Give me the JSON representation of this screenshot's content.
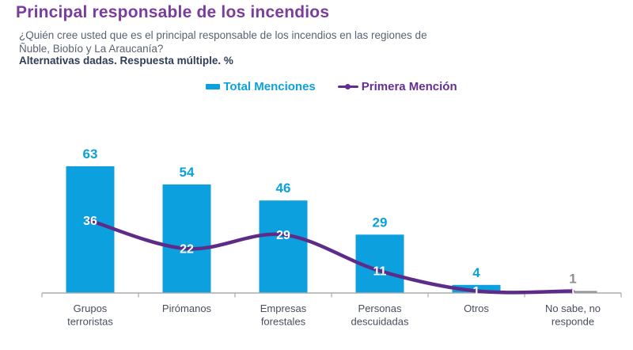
{
  "header": {
    "title": "Principal responsable de los incendios",
    "subtitle_line1": "¿Quién cree usted que es el principal responsable de los incendios en las regiones de",
    "subtitle_line2": "Ñuble, Biobío y La Araucanía?",
    "note": "Alternativas dadas. Respuesta múltiple. %"
  },
  "colors": {
    "bar_blue": "#0CA1DE",
    "bar_gray": "#8A8D90",
    "gray_label": "#8C8F92",
    "line_purple": "#5F2B88",
    "legend_purple": "#662D91",
    "title_purple": "#7B3D9D",
    "category_label": "#484E5C",
    "axis": "#A9ABAD",
    "line_label_white": "#FFFFFF"
  },
  "chart_data": {
    "type": "bar",
    "combo": true,
    "title": "Principal responsable de los incendios",
    "categories": [
      "Grupos terroristas",
      "Pirómanos",
      "Empresas forestales",
      "Personas descuidadas",
      "Otros",
      "No sabe, no responde"
    ],
    "category_label_lines": [
      [
        "Grupos",
        "terroristas"
      ],
      [
        "Pirómanos"
      ],
      [
        "Empresas",
        "forestales"
      ],
      [
        "Personas",
        "descuidadas"
      ],
      [
        "Otros"
      ],
      [
        "No sabe, no",
        "responde"
      ]
    ],
    "series": [
      {
        "name": "Total Menciones",
        "kind": "bar",
        "values": [
          63,
          54,
          46,
          29,
          4,
          1
        ],
        "bar_colors": [
          "#0CA1DE",
          "#0CA1DE",
          "#0CA1DE",
          "#0CA1DE",
          "#0CA1DE",
          "#8A8D90"
        ],
        "label_colors": [
          "#0CA1DE",
          "#0CA1DE",
          "#0CA1DE",
          "#0CA1DE",
          "#0CA1DE",
          "#8C8F92"
        ]
      },
      {
        "name": "Primera Mención",
        "kind": "line",
        "values": [
          36,
          22,
          29,
          11,
          1,
          1
        ],
        "color": "#5F2B88",
        "label_color": "#FFFFFF"
      }
    ],
    "unit": "%",
    "grid": false,
    "y_axis_visible": false,
    "legend_position": "top"
  }
}
